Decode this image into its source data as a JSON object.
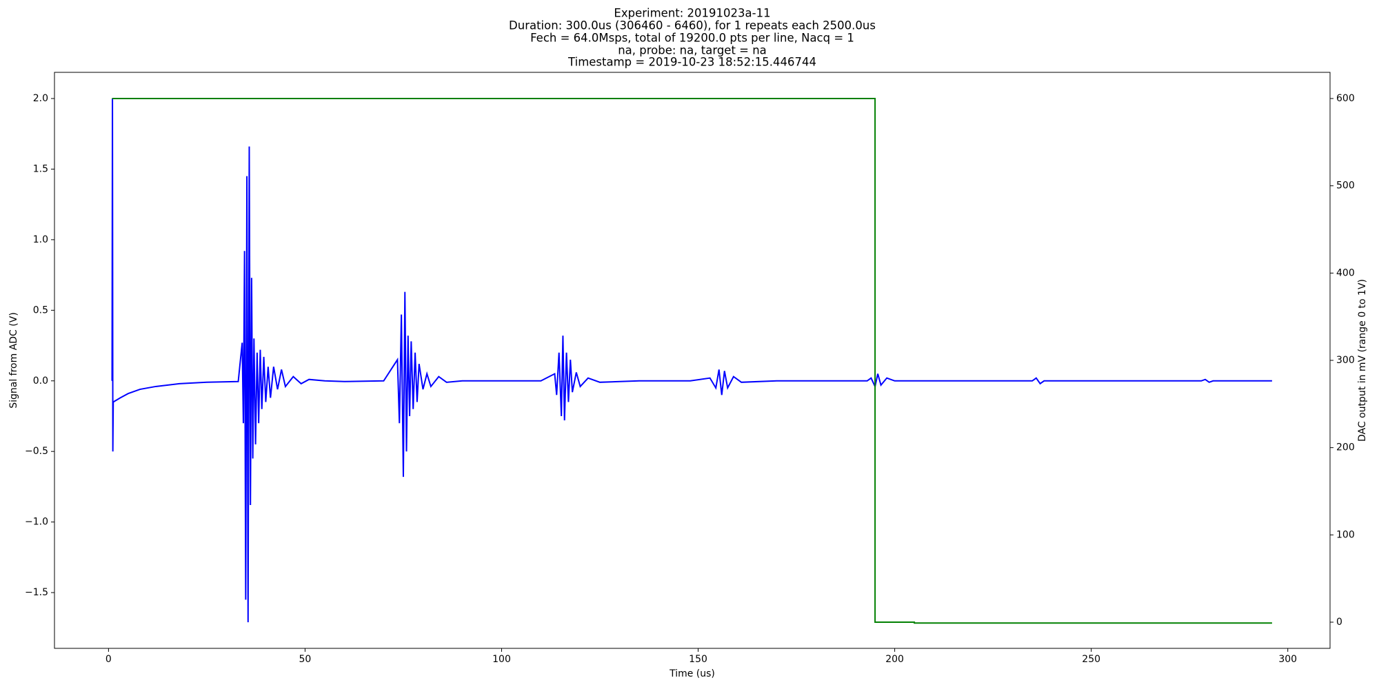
{
  "chart_data": {
    "type": "line",
    "title": [
      "Experiment: 20191023a-11",
      "Duration: 300.0us (306460 - 6460), for 1 repeats each 2500.0us",
      "Fech = 64.0Msps, total of 19200.0 pts per line, Nacq = 1",
      "na, probe: na, target = na",
      "Timestamp = 2019-10-23 18:52:15.446744"
    ],
    "x_label": "Time (us)",
    "y_label": "Signal from ADC (V)",
    "y2_label": "DAC output in mV (range 0 to 1V)",
    "y_label_color": "#0000ff",
    "y2_label_color": "#008000",
    "xlim": [
      -13.75,
      310.75
    ],
    "xticks": [
      0,
      50,
      100,
      150,
      200,
      250,
      300
    ],
    "ylim": [
      -1.895,
      2.1855
    ],
    "yticks": [
      {
        "value": -1.5,
        "label": "−1.5"
      },
      {
        "value": -1.0,
        "label": "−1.0"
      },
      {
        "value": -0.5,
        "label": "−0.5"
      },
      {
        "value": 0,
        "label": "0.0"
      },
      0.5,
      {
        "value": 1.0,
        "label": "1.0"
      },
      1.5,
      {
        "value": 2.0,
        "label": "2.0"
      }
    ],
    "y2lim": [
      -30,
      630
    ],
    "y2ticks": [
      0,
      100,
      200,
      300,
      400,
      500,
      600
    ],
    "grid": false,
    "series": [
      {
        "color": "#0000ff",
        "x": [
          0.9,
          1.0,
          1.1,
          1.2,
          3,
          5,
          8,
          12,
          18,
          25,
          33,
          34,
          34.3,
          34.6,
          34.9,
          35.2,
          35.5,
          35.8,
          36.1,
          36.4,
          36.7,
          37,
          37.4,
          37.8,
          38.2,
          38.6,
          39,
          39.5,
          40,
          40.6,
          41.2,
          42,
          43,
          44,
          45,
          47,
          49,
          51,
          55,
          60,
          70,
          73.5,
          74,
          74.5,
          75,
          75.4,
          75.8,
          76.2,
          76.6,
          77,
          77.5,
          78,
          78.5,
          79,
          80,
          81,
          82,
          84,
          86,
          90,
          100,
          110,
          113.5,
          114,
          114.6,
          115.2,
          115.6,
          116,
          116.5,
          117,
          117.5,
          118,
          119,
          120,
          122,
          125,
          135,
          148,
          153,
          154.5,
          155.3,
          156,
          156.7,
          157.5,
          159,
          161,
          170,
          193,
          194,
          195,
          195.7,
          196.5,
          198,
          200,
          210,
          235,
          236,
          237,
          238,
          278,
          279,
          280,
          281,
          296
        ],
        "values": [
          0,
          2.0,
          -0.5,
          -0.15,
          -0.12,
          -0.09,
          -0.06,
          -0.04,
          -0.02,
          -0.01,
          -0.005,
          0.27,
          -0.3,
          0.92,
          -1.55,
          1.45,
          -1.71,
          1.66,
          -0.88,
          0.73,
          -0.55,
          0.3,
          -0.45,
          0.2,
          -0.3,
          0.22,
          -0.2,
          0.17,
          -0.15,
          0.1,
          -0.12,
          0.1,
          -0.06,
          0.08,
          -0.04,
          0.03,
          -0.02,
          0.01,
          0,
          -0.005,
          0,
          0.15,
          -0.3,
          0.47,
          -0.68,
          0.63,
          -0.5,
          0.32,
          -0.25,
          0.28,
          -0.2,
          0.2,
          -0.15,
          0.12,
          -0.06,
          0.05,
          -0.04,
          0.03,
          -0.01,
          0,
          0,
          0,
          0.05,
          -0.1,
          0.2,
          -0.25,
          0.32,
          -0.28,
          0.2,
          -0.15,
          0.15,
          -0.08,
          0.06,
          -0.04,
          0.02,
          -0.01,
          0,
          0,
          0.02,
          -0.05,
          0.08,
          -0.1,
          0.07,
          -0.05,
          0.03,
          -0.01,
          0,
          0,
          0.02,
          -0.04,
          0.05,
          -0.03,
          0.02,
          0,
          0,
          0,
          0.02,
          -0.02,
          0,
          0,
          0.01,
          -0.01,
          0,
          0
        ]
      },
      {
        "color": "#008000",
        "axis": "y2",
        "x": [
          0.9,
          195,
          195,
          205,
          205,
          296
        ],
        "values": [
          600,
          600,
          0,
          0,
          -1,
          -1
        ]
      }
    ]
  }
}
